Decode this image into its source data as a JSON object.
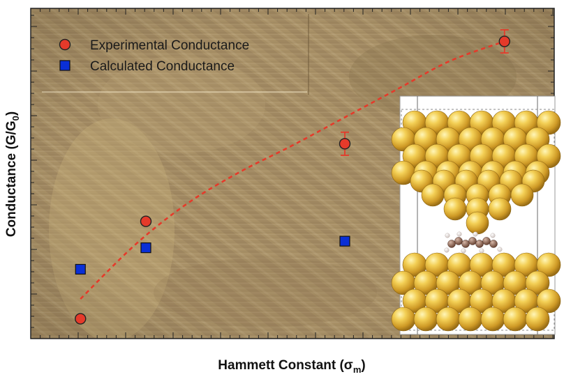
{
  "chart_data": {
    "type": "scatter",
    "title": "",
    "xlabel": "Hammett Constant (σm)",
    "ylabel": "Conductance (G/G0)",
    "x_ticks_labeled": false,
    "y_ticks_labeled": false,
    "xlim": [
      0,
      10
    ],
    "ylim": [
      0,
      10
    ],
    "grid": false,
    "legend_position": "top-left",
    "series": [
      {
        "name": "Experimental Conductance",
        "marker": "circle",
        "color": "#e53a2a",
        "x": [
          0.95,
          2.2,
          6.0,
          9.05
        ],
        "y": [
          0.6,
          3.55,
          5.9,
          9.0
        ],
        "y_err": [
          0,
          0,
          0.35,
          0.35
        ]
      },
      {
        "name": "Calculated Conductance",
        "marker": "square",
        "color": "#0a2fd6",
        "x": [
          0.95,
          2.2,
          6.0
        ],
        "y": [
          2.1,
          2.75,
          2.95
        ]
      }
    ],
    "fit_curve": {
      "style": "dashed",
      "color": "#e53a2a",
      "x": [
        0.95,
        2.0,
        3.0,
        4.0,
        5.0,
        6.0,
        7.0,
        8.0,
        9.05
      ],
      "y": [
        1.2,
        2.85,
        4.1,
        5.05,
        5.85,
        6.7,
        7.55,
        8.4,
        9.0
      ]
    },
    "background": "STM topography image (golden-brown texture)",
    "inset": "molecular junction model: gold electrode pyramid above, molecule, flat gold electrode below"
  }
}
